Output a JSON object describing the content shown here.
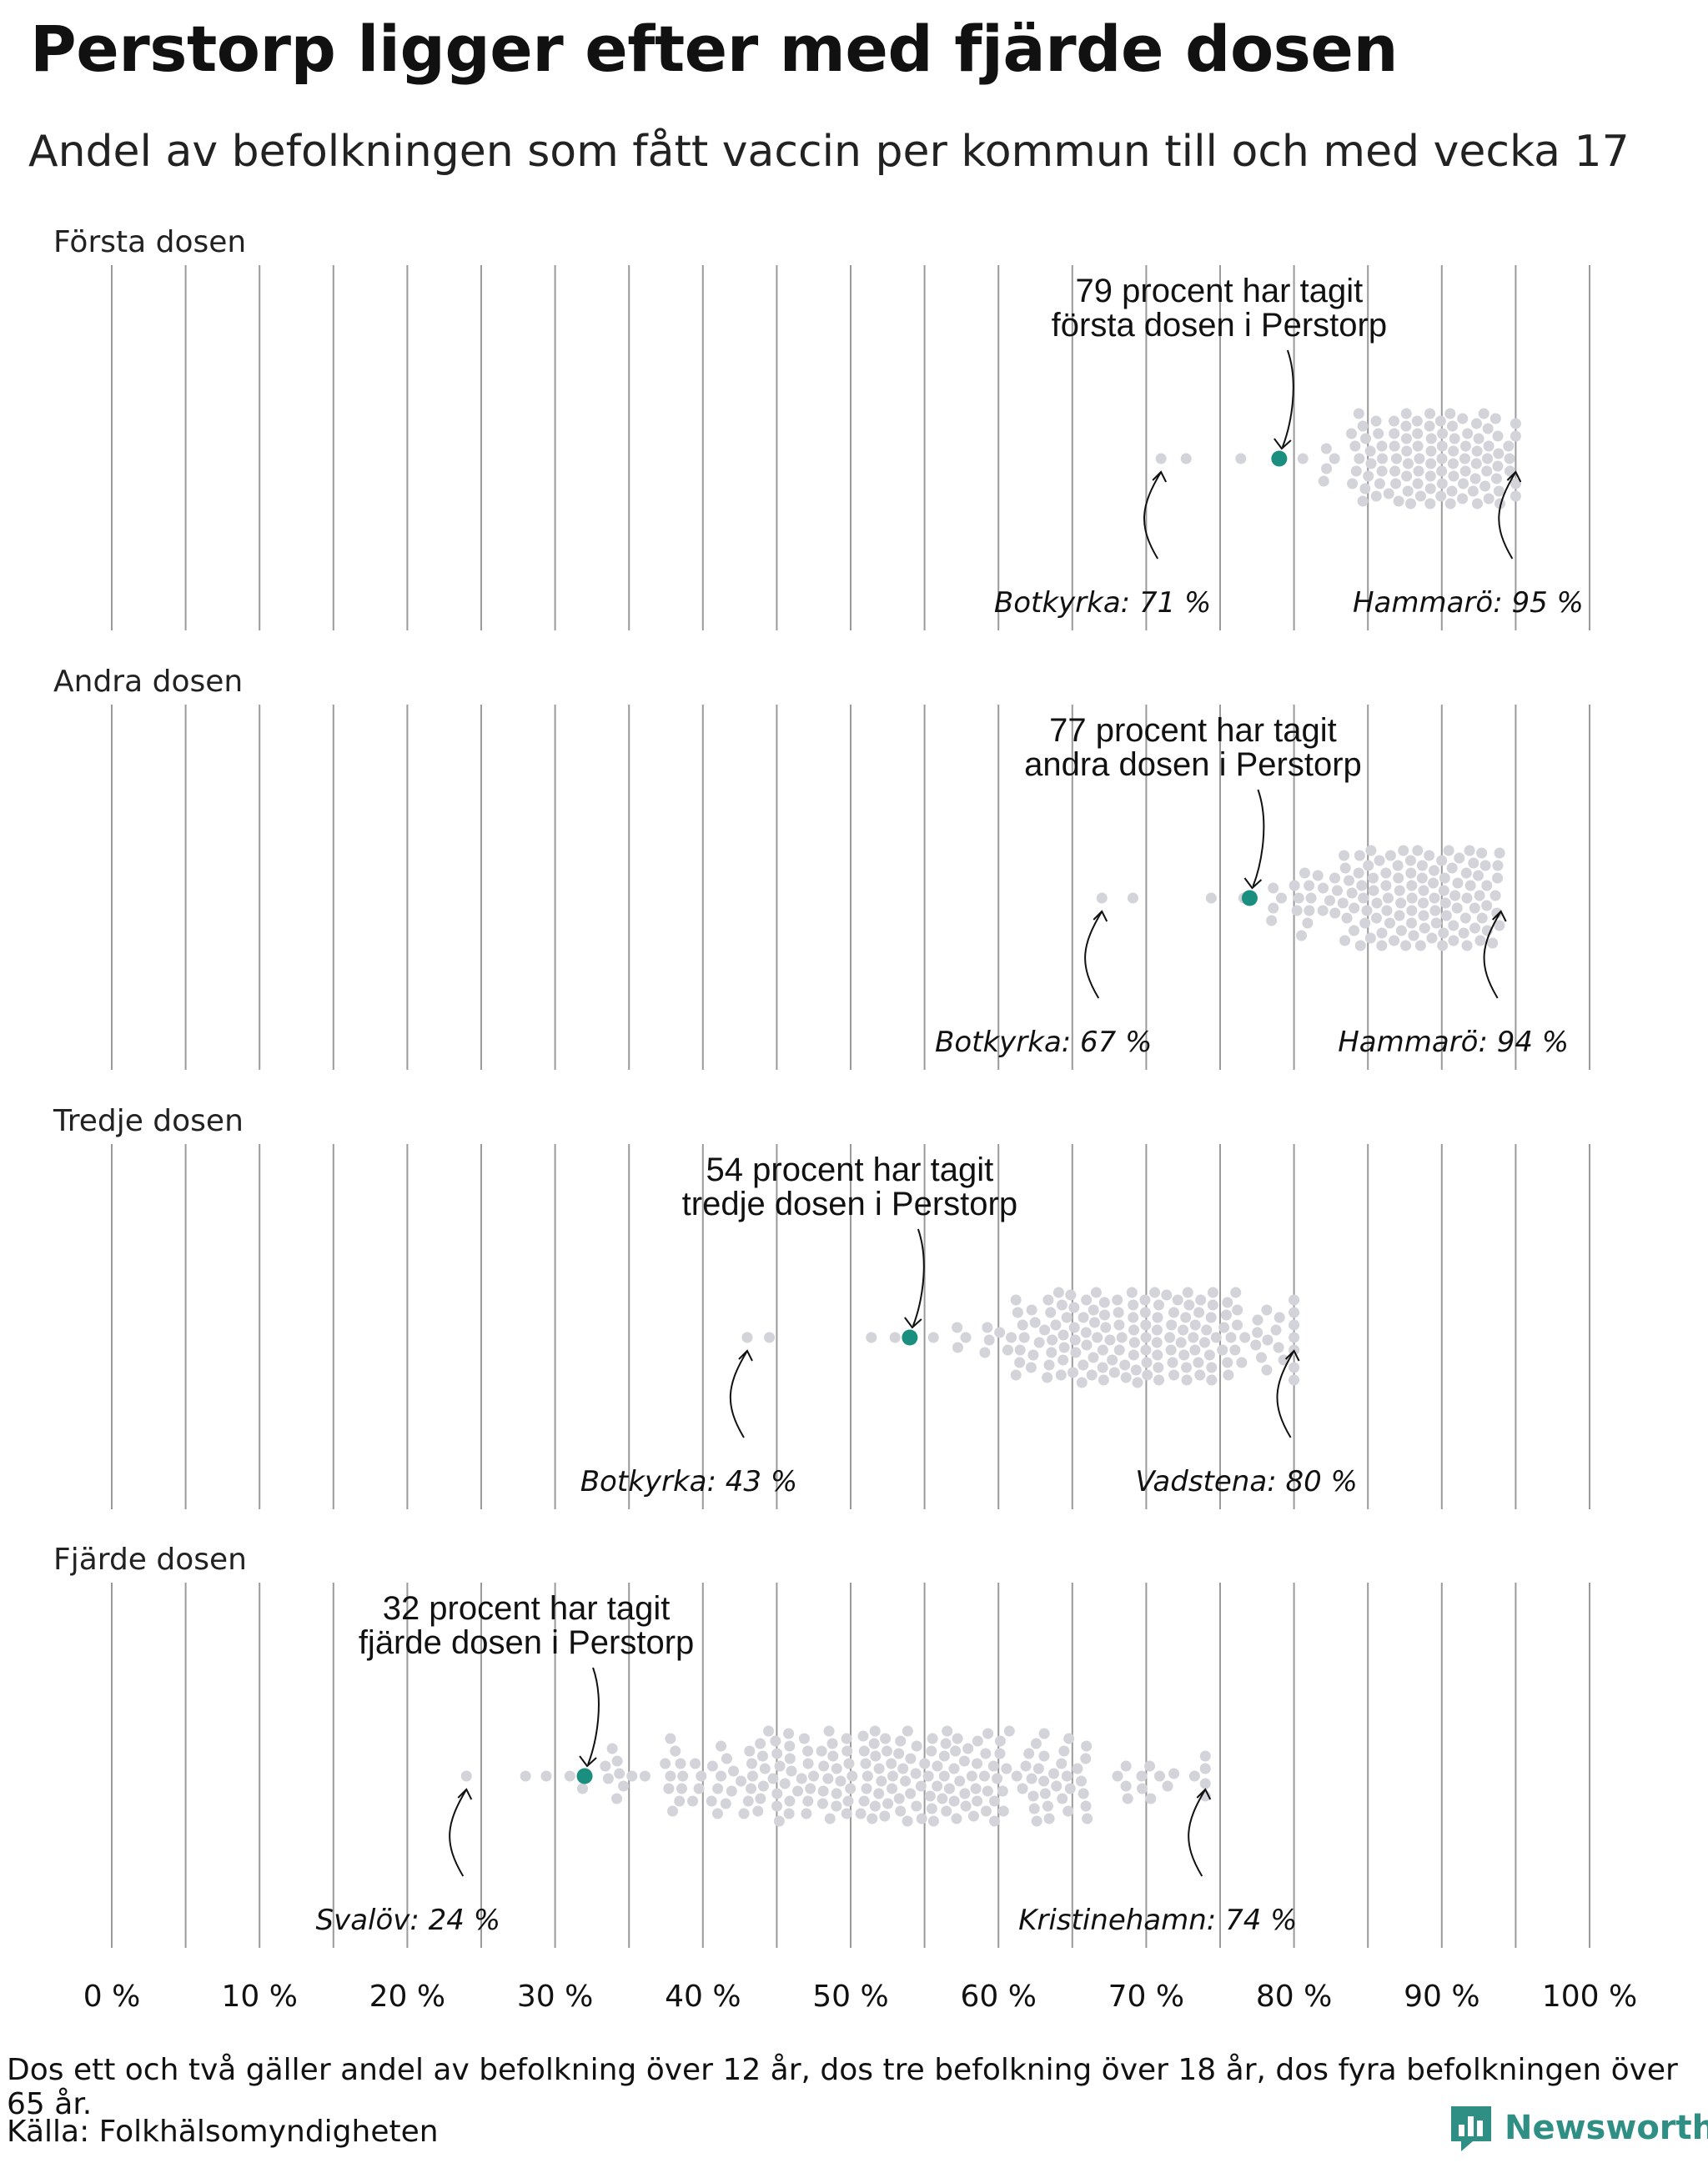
{
  "title": "Perstorp ligger efter med fjärde dosen",
  "subtitle": "Andel av befolkningen som fått vaccin per kommun till och med vecka 17",
  "footnote": "Dos ett och två gäller andel av befolkning över 12 år, dos tre befolkning över 18 år, dos fyra befolkningen över 65 år.",
  "source": "Källa: Folkhälsomyndigheten",
  "brand": "Newsworthy",
  "colors": {
    "highlight": "#1a8f80",
    "dot": "#d3d3da",
    "grid": "#9a9a9a",
    "brand": "#2f8f85"
  },
  "chart_data": {
    "type": "scatter",
    "subtype": "beeswarm",
    "xlabel": "",
    "ylabel": "",
    "xlim": [
      0,
      100
    ],
    "x_ticks": [
      0,
      10,
      20,
      30,
      40,
      50,
      60,
      70,
      80,
      90,
      100
    ],
    "x_tick_labels": [
      "0 %",
      "10 %",
      "20 %",
      "30 %",
      "40 %",
      "50 %",
      "60 %",
      "70 %",
      "80 %",
      "90 %",
      "100 %"
    ],
    "grid": true,
    "panels": [
      {
        "name": "Första dosen",
        "highlight": {
          "value": 79,
          "label_line1": "79 procent har tagit",
          "label_line2": "första dosen i Perstorp"
        },
        "min": {
          "name": "Botkyrka",
          "value": 71,
          "label": "Botkyrka: 71 %"
        },
        "max": {
          "name": "Hammarö",
          "value": 95,
          "label": "Hammarö: 95 %"
        },
        "distribution": {
          "low_outliers": [
            71,
            72.7
          ],
          "n": 290,
          "center": 90,
          "spread": 3.2,
          "y_extent": 55
        }
      },
      {
        "name": "Andra dosen",
        "highlight": {
          "value": 77,
          "label_line1": "77 procent har tagit",
          "label_line2": "andra dosen i Perstorp"
        },
        "min": {
          "name": "Botkyrka",
          "value": 67,
          "label": "Botkyrka: 67 %"
        },
        "max": {
          "name": "Hammarö",
          "value": 94,
          "label": "Hammarö: 94 %"
        },
        "distribution": {
          "low_outliers": [
            67,
            69.1
          ],
          "n": 290,
          "center": 88,
          "spread": 3.5,
          "y_extent": 57
        }
      },
      {
        "name": "Tredje dosen",
        "highlight": {
          "value": 54,
          "label_line1": "54 procent har tagit",
          "label_line2": "tredje dosen i Perstorp"
        },
        "min": {
          "name": "Botkyrka",
          "value": 43,
          "label": "Botkyrka: 43 %"
        },
        "max": {
          "name": "Vadstena",
          "value": 80,
          "label": "Vadstena: 80 %"
        },
        "distribution": {
          "low_outliers": [
            43,
            44.5
          ],
          "n": 290,
          "center": 70,
          "spread": 5,
          "y_extent": 56
        }
      },
      {
        "name": "Fjärde dosen",
        "highlight": {
          "value": 32,
          "label_line1": "32 procent har tagit",
          "label_line2": "fjärde dosen i Perstorp"
        },
        "min": {
          "name": "Svalöv",
          "value": 24,
          "label": "Svalöv: 24 %"
        },
        "max": {
          "name": "Kristinehamn",
          "value": 74,
          "label": "Kristinehamn: 74 %"
        },
        "distribution": {
          "low_outliers": [
            24,
            28
          ],
          "n": 290,
          "center": 53,
          "spread": 9,
          "y_extent": 56
        }
      }
    ]
  }
}
